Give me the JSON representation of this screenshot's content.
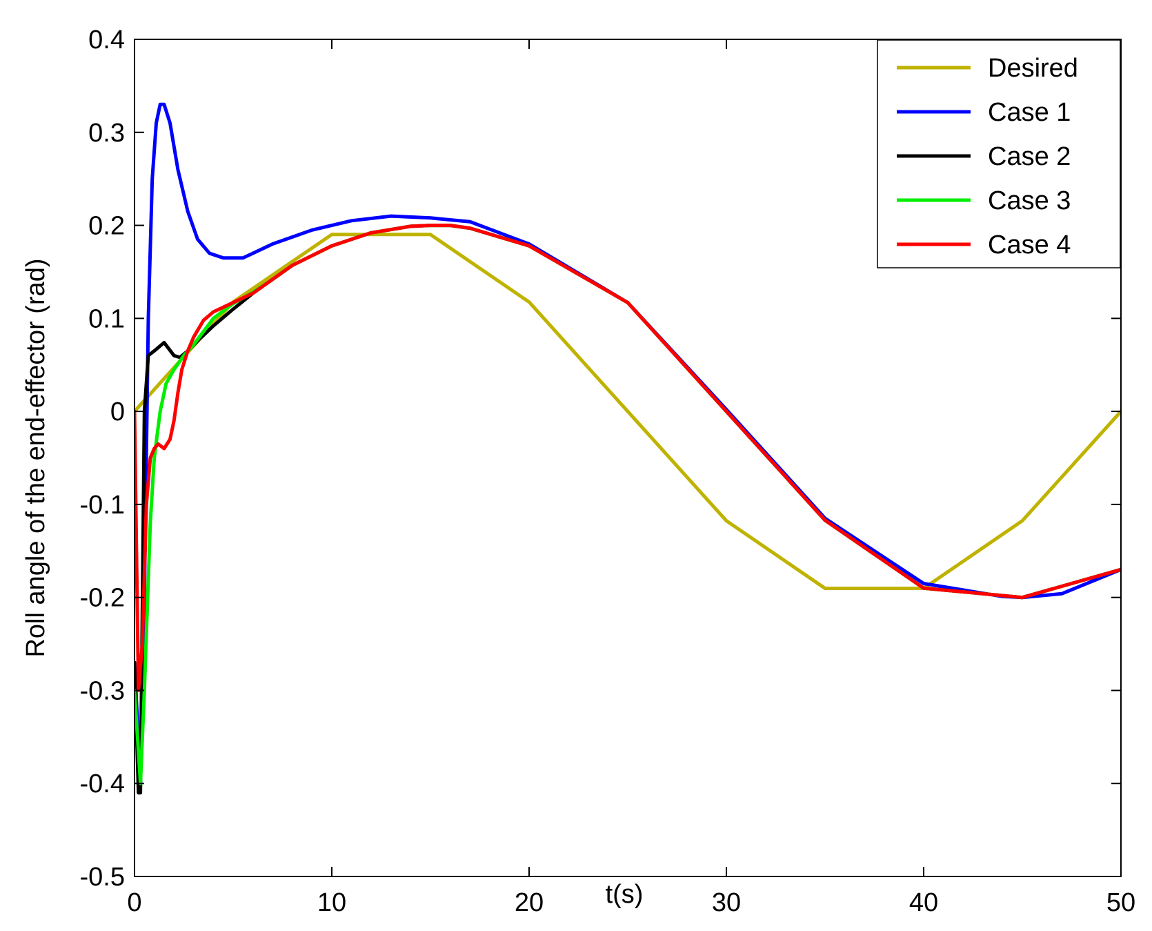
{
  "chart_data": {
    "type": "line",
    "xlabel": "t(s)",
    "ylabel": "Roll angle of the end-effector (rad)",
    "xlim": [
      0,
      50
    ],
    "ylim": [
      -0.5,
      0.4
    ],
    "xticks": [
      0,
      10,
      20,
      30,
      40,
      50
    ],
    "xtick_labels": [
      "0",
      "10",
      "20",
      "30",
      "40",
      "50"
    ],
    "yticks": [
      0.4,
      0.3,
      0.2,
      0.1,
      0,
      -0.1,
      -0.2,
      -0.3,
      -0.4,
      -0.5
    ],
    "ytick_labels": [
      "0.4",
      "0.3",
      "0.2",
      "0.1",
      "0",
      "-0.1",
      "-0.2",
      "-0.3",
      "-0.4",
      "-0.5"
    ],
    "grid": false,
    "legend_position": "top-right",
    "series": [
      {
        "name": "Desired",
        "color": "#bfb300",
        "x": [
          0,
          5,
          10,
          15,
          20,
          25,
          30,
          35,
          40,
          45,
          50
        ],
        "y": [
          0,
          0.1176,
          0.1902,
          0.1902,
          0.1176,
          0,
          -0.1176,
          -0.1902,
          -0.1902,
          -0.1176,
          0
        ]
      },
      {
        "name": "Case 1",
        "color": "#0000ff",
        "x": [
          0,
          0.3,
          0.5,
          0.7,
          0.9,
          1.1,
          1.3,
          1.5,
          1.8,
          2.2,
          2.7,
          3.2,
          3.8,
          4.5,
          5.5,
          7,
          9,
          11,
          13,
          15,
          17,
          20,
          25,
          30,
          35,
          40,
          44,
          45,
          47,
          50
        ],
        "y": [
          -0.27,
          -0.4,
          -0.2,
          0.1,
          0.25,
          0.31,
          0.33,
          0.33,
          0.31,
          0.26,
          0.215,
          0.185,
          0.17,
          0.165,
          0.165,
          0.18,
          0.195,
          0.205,
          0.21,
          0.208,
          0.204,
          0.18,
          0.117,
          0.002,
          -0.115,
          -0.185,
          -0.199,
          -0.2,
          -0.196,
          -0.17
        ]
      },
      {
        "name": "Case 2",
        "color": "#000000",
        "x": [
          0,
          0.2,
          0.3,
          0.5,
          0.7,
          1.0,
          1.5,
          2.0,
          2.3,
          2.7,
          3.3,
          4,
          5,
          6,
          7,
          8,
          10,
          12,
          14,
          15,
          16,
          17,
          20,
          25,
          30,
          35,
          40,
          45,
          50
        ],
        "y": [
          -0.27,
          -0.41,
          -0.41,
          0.0,
          0.06,
          0.065,
          0.074,
          0.06,
          0.058,
          0.065,
          0.078,
          0.092,
          0.11,
          0.127,
          0.142,
          0.157,
          0.178,
          0.192,
          0.199,
          0.2,
          0.2,
          0.197,
          0.178,
          0.117,
          0.0,
          -0.117,
          -0.19,
          -0.2,
          -0.17
        ]
      },
      {
        "name": "Case 3",
        "color": "#00ee00",
        "x": [
          0,
          0.3,
          0.5,
          0.8,
          1.0,
          1.3,
          1.6,
          2.0,
          2.5,
          3.0,
          4,
          5,
          6,
          7,
          8,
          10,
          12,
          14,
          15,
          16,
          17,
          20,
          25,
          30,
          35,
          40,
          45,
          50
        ],
        "y": [
          -0.3,
          -0.4,
          -0.3,
          -0.12,
          -0.05,
          0.0,
          0.03,
          0.045,
          0.06,
          0.072,
          0.1,
          0.116,
          0.128,
          0.142,
          0.157,
          0.178,
          0.192,
          0.199,
          0.2,
          0.2,
          0.197,
          0.178,
          0.117,
          0.0,
          -0.117,
          -0.19,
          -0.2,
          -0.17
        ]
      },
      {
        "name": "Case 4",
        "color": "#ff0000",
        "x": [
          0,
          0.2,
          0.4,
          0.6,
          0.8,
          1.0,
          1.2,
          1.5,
          1.8,
          2.0,
          2.2,
          2.4,
          2.7,
          3.0,
          3.5,
          4.0,
          4.5,
          5,
          6,
          7,
          8,
          10,
          12,
          14,
          15,
          16,
          17,
          20,
          25,
          30,
          35,
          40,
          45,
          50
        ],
        "y": [
          0,
          -0.3,
          -0.25,
          -0.1,
          -0.05,
          -0.04,
          -0.035,
          -0.04,
          -0.03,
          -0.01,
          0.02,
          0.045,
          0.065,
          0.08,
          0.098,
          0.107,
          0.112,
          0.117,
          0.127,
          0.142,
          0.157,
          0.178,
          0.192,
          0.199,
          0.2,
          0.2,
          0.197,
          0.178,
          0.117,
          0.0,
          -0.117,
          -0.19,
          -0.2,
          -0.17
        ]
      }
    ]
  }
}
